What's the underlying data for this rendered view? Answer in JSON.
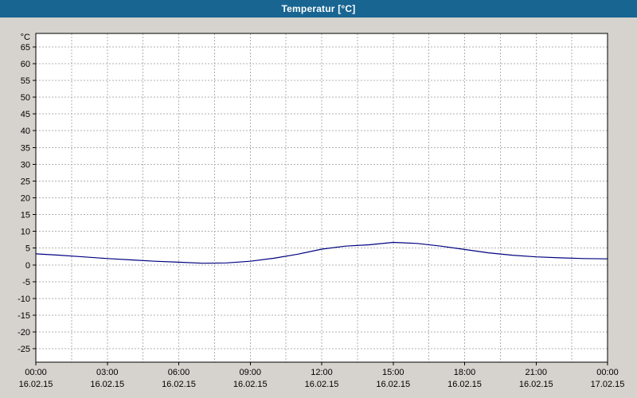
{
  "window": {
    "title": "Temperatur [°C]"
  },
  "colors": {
    "titlebar_bg": "#186592",
    "titlebar_text": "#ffffff",
    "page_bg": "#d6d3ce",
    "plot_bg": "#ffffff",
    "plot_border": "#000000",
    "grid": "#b1b1b1",
    "line": "#000080",
    "text": "#000000"
  },
  "chart_data": {
    "type": "line",
    "title": "Temperatur [°C]",
    "ylabel": "°C",
    "xlabel": "",
    "grid": true,
    "legend": "none",
    "xlim": [
      0,
      24
    ],
    "ylim": [
      -29,
      69
    ],
    "y_ticks": [
      65,
      60,
      55,
      50,
      45,
      40,
      35,
      30,
      25,
      20,
      15,
      10,
      5,
      0,
      -5,
      -10,
      -15,
      -20,
      -25
    ],
    "x_grid_step_hours": 1.5,
    "x_tick_hours": [
      0,
      3,
      6,
      9,
      12,
      15,
      18,
      21,
      24
    ],
    "x_tick_times": [
      "00:00",
      "03:00",
      "06:00",
      "09:00",
      "12:00",
      "15:00",
      "18:00",
      "21:00",
      "00:00"
    ],
    "x_tick_dates": [
      "16.02.15",
      "16.02.15",
      "16.02.15",
      "16.02.15",
      "16.02.15",
      "16.02.15",
      "16.02.15",
      "16.02.15",
      "17.02.15"
    ],
    "series_name": "Temperatur",
    "x_hours": [
      0,
      1,
      2,
      3,
      4,
      5,
      6,
      7,
      8,
      9,
      10,
      11,
      12,
      13,
      14,
      15,
      16,
      17,
      18,
      19,
      20,
      21,
      22,
      23,
      24
    ],
    "values": [
      3.3,
      2.9,
      2.4,
      1.9,
      1.5,
      1.1,
      0.8,
      0.5,
      0.6,
      1.1,
      2.0,
      3.2,
      4.7,
      5.6,
      6.0,
      6.7,
      6.4,
      5.6,
      4.6,
      3.6,
      2.9,
      2.4,
      2.1,
      1.9,
      1.8
    ]
  }
}
